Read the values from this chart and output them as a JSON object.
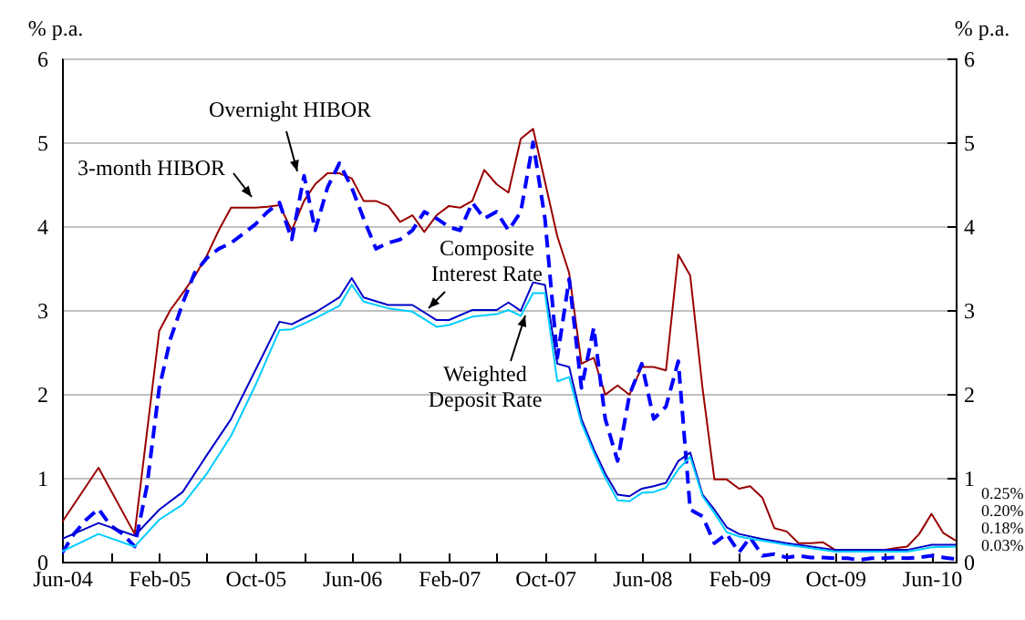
{
  "chart_data": {
    "type": "line",
    "ylabel": "% p.a.",
    "y2label": "% p.a.",
    "xlim": [
      "2004-06",
      "2010-08"
    ],
    "xticks": [
      {
        "value": "2004-06",
        "label": "Jun-04"
      },
      {
        "value": "2004-10",
        "label": null
      },
      {
        "value": "2005-02",
        "label": "Feb-05"
      },
      {
        "value": "2005-06",
        "label": null
      },
      {
        "value": "2005-10",
        "label": "Oct-05"
      },
      {
        "value": "2006-02",
        "label": null
      },
      {
        "value": "2006-06",
        "label": "Jun-06"
      },
      {
        "value": "2006-10",
        "label": null
      },
      {
        "value": "2007-02",
        "label": "Feb-07"
      },
      {
        "value": "2007-06",
        "label": null
      },
      {
        "value": "2007-10",
        "label": "Oct-07"
      },
      {
        "value": "2008-02",
        "label": null
      },
      {
        "value": "2008-06",
        "label": "Jun-08"
      },
      {
        "value": "2008-10",
        "label": null
      },
      {
        "value": "2009-02",
        "label": "Feb-09"
      },
      {
        "value": "2009-06",
        "label": null
      },
      {
        "value": "2009-10",
        "label": "Oct-09"
      },
      {
        "value": "2010-02",
        "label": null
      },
      {
        "value": "2010-06",
        "label": "Jun-10"
      }
    ],
    "ylim": [
      0,
      6
    ],
    "yticks": [
      0,
      1,
      2,
      3,
      4,
      5,
      6
    ],
    "y2lim": [
      0,
      6
    ],
    "y2ticks": [
      0,
      1,
      2,
      3,
      4,
      5,
      6
    ],
    "grid": "y",
    "series": [
      {
        "name": "3-month HIBOR",
        "color": "#990000",
        "x": [
          "2004-06",
          "2004-09",
          "2004-12",
          "2005-02",
          "2005-03",
          "2005-04",
          "2005-05",
          "2005-06",
          "2005-07",
          "2005-08",
          "2005-09",
          "2005-10",
          "2005-11",
          "2005-12",
          "2006-01",
          "2006-02",
          "2006-03",
          "2006-04",
          "2006-05",
          "2006-06",
          "2006-07",
          "2006-08",
          "2006-09",
          "2006-10",
          "2006-11",
          "2006-12",
          "2007-01",
          "2007-02",
          "2007-03",
          "2007-04",
          "2007-05",
          "2007-06",
          "2007-07",
          "2007-08",
          "2007-09",
          "2007-10",
          "2007-11",
          "2007-12",
          "2008-01",
          "2008-02",
          "2008-03",
          "2008-04",
          "2008-05",
          "2008-06",
          "2008-07",
          "2008-08",
          "2008-09",
          "2008-10",
          "2008-11",
          "2008-12",
          "2009-01",
          "2009-02",
          "2009-03",
          "2009-04",
          "2009-05",
          "2009-06",
          "2009-07",
          "2009-08",
          "2009-09",
          "2009-10",
          "2009-11",
          "2009-12",
          "2010-01",
          "2010-02",
          "2010-03",
          "2010-04",
          "2010-05",
          "2010-06",
          "2010-07",
          "2010-08"
        ],
        "values": [
          0.47,
          1.12,
          0.33,
          2.75,
          3.0,
          3.2,
          3.4,
          3.65,
          3.95,
          4.22,
          4.22,
          4.22,
          4.23,
          4.25,
          3.95,
          4.3,
          4.5,
          4.63,
          4.63,
          4.57,
          4.3,
          4.3,
          4.24,
          4.05,
          4.13,
          3.93,
          4.13,
          4.24,
          4.22,
          4.3,
          4.67,
          4.5,
          4.4,
          5.04,
          5.16,
          4.53,
          3.88,
          3.44,
          2.36,
          2.43,
          1.99,
          2.1,
          1.99,
          2.32,
          2.32,
          2.28,
          3.66,
          3.41,
          2.07,
          0.98,
          0.98,
          0.87,
          0.9,
          0.76,
          0.4,
          0.36,
          0.22,
          0.22,
          0.23,
          0.14,
          0.13,
          0.12,
          0.13,
          0.14,
          0.16,
          0.18,
          0.33,
          0.57,
          0.34,
          0.25
        ]
      },
      {
        "name": "Overnight HIBOR",
        "color": "#0000ff",
        "line_style": "dashed",
        "x": [
          "2004-06",
          "2004-07",
          "2004-08",
          "2004-09",
          "2004-10",
          "2004-11",
          "2004-12",
          "2005-01",
          "2005-02",
          "2005-03",
          "2005-04",
          "2005-05",
          "2005-06",
          "2005-07",
          "2005-08",
          "2005-09",
          "2005-10",
          "2005-11",
          "2005-12",
          "2006-01",
          "2006-02",
          "2006-03",
          "2006-04",
          "2006-05",
          "2006-06",
          "2006-07",
          "2006-08",
          "2006-09",
          "2006-10",
          "2006-11",
          "2006-12",
          "2007-01",
          "2007-02",
          "2007-03",
          "2007-04",
          "2007-05",
          "2007-06",
          "2007-07",
          "2007-08",
          "2007-09",
          "2007-10",
          "2007-11",
          "2007-12",
          "2008-01",
          "2008-02",
          "2008-03",
          "2008-04",
          "2008-05",
          "2008-06",
          "2008-07",
          "2008-08",
          "2008-09",
          "2008-10",
          "2008-11",
          "2008-12",
          "2009-01",
          "2009-02",
          "2009-03",
          "2009-04",
          "2009-05",
          "2009-06",
          "2009-07",
          "2009-08",
          "2009-09",
          "2009-10",
          "2009-11",
          "2009-12",
          "2010-01",
          "2010-02",
          "2010-03",
          "2010-04",
          "2010-05",
          "2010-06",
          "2010-07",
          "2010-08"
        ],
        "values": [
          0.1,
          0.33,
          0.5,
          0.63,
          0.43,
          0.33,
          0.18,
          0.9,
          2.07,
          2.65,
          3.08,
          3.44,
          3.62,
          3.73,
          3.8,
          3.91,
          4.02,
          4.17,
          4.28,
          3.84,
          4.6,
          3.95,
          4.46,
          4.75,
          4.46,
          4.09,
          3.73,
          3.8,
          3.84,
          3.95,
          4.17,
          4.09,
          3.99,
          3.95,
          4.28,
          4.09,
          4.17,
          3.95,
          4.17,
          5.0,
          4.09,
          2.43,
          3.37,
          2.07,
          2.79,
          1.7,
          1.2,
          1.99,
          2.36,
          1.7,
          1.85,
          2.39,
          0.62,
          0.54,
          0.22,
          0.33,
          0.11,
          0.29,
          0.07,
          0.09,
          0.05,
          0.07,
          0.05,
          0.05,
          0.04,
          0.04,
          0.02,
          0.04,
          0.04,
          0.05,
          0.04,
          0.05,
          0.07,
          0.05,
          0.03
        ]
      },
      {
        "name": "Composite Interest Rate",
        "color": "#0000c8",
        "x": [
          "2004-06",
          "2004-09",
          "2004-12",
          "2005-02",
          "2005-04",
          "2005-06",
          "2005-08",
          "2005-10",
          "2005-12",
          "2006-01",
          "2006-03",
          "2006-05",
          "2006-06",
          "2006-07",
          "2006-09",
          "2006-11",
          "2007-01",
          "2007-02",
          "2007-04",
          "2007-06",
          "2007-07",
          "2007-08",
          "2007-09",
          "2007-10",
          "2007-11",
          "2007-12",
          "2008-01",
          "2008-02",
          "2008-03",
          "2008-04",
          "2008-05",
          "2008-06",
          "2008-07",
          "2008-08",
          "2008-09",
          "2008-10",
          "2008-11",
          "2008-12",
          "2009-01",
          "2009-02",
          "2009-04",
          "2009-06",
          "2009-08",
          "2009-10",
          "2009-12",
          "2010-02",
          "2010-04",
          "2010-06",
          "2010-08"
        ],
        "values": [
          0.27,
          0.46,
          0.31,
          0.62,
          0.83,
          1.27,
          1.7,
          2.28,
          2.86,
          2.83,
          2.97,
          3.15,
          3.38,
          3.15,
          3.06,
          3.06,
          2.88,
          2.88,
          3.0,
          3.0,
          3.09,
          2.99,
          3.33,
          3.3,
          2.36,
          2.32,
          1.7,
          1.34,
          1.05,
          0.8,
          0.78,
          0.87,
          0.9,
          0.94,
          1.2,
          1.3,
          0.8,
          0.62,
          0.41,
          0.33,
          0.27,
          0.22,
          0.18,
          0.14,
          0.14,
          0.14,
          0.14,
          0.2,
          0.2
        ]
      },
      {
        "name": "Weighted Deposit Rate",
        "color": "#00ccff",
        "x": [
          "2004-06",
          "2004-09",
          "2004-12",
          "2005-02",
          "2005-04",
          "2005-06",
          "2005-08",
          "2005-10",
          "2005-12",
          "2006-01",
          "2006-03",
          "2006-05",
          "2006-06",
          "2006-07",
          "2006-09",
          "2006-11",
          "2007-01",
          "2007-02",
          "2007-04",
          "2007-06",
          "2007-07",
          "2007-08",
          "2007-09",
          "2007-10",
          "2007-11",
          "2007-12",
          "2008-01",
          "2008-02",
          "2008-03",
          "2008-04",
          "2008-05",
          "2008-06",
          "2008-07",
          "2008-08",
          "2008-09",
          "2008-10",
          "2008-11",
          "2008-12",
          "2009-01",
          "2009-02",
          "2009-04",
          "2009-06",
          "2009-08",
          "2009-10",
          "2009-12",
          "2010-02",
          "2010-04",
          "2010-06",
          "2010-08"
        ],
        "values": [
          0.12,
          0.33,
          0.18,
          0.5,
          0.68,
          1.05,
          1.5,
          2.1,
          2.76,
          2.77,
          2.9,
          3.05,
          3.3,
          3.1,
          3.02,
          2.98,
          2.8,
          2.82,
          2.92,
          2.95,
          3.0,
          2.93,
          3.2,
          3.2,
          2.15,
          2.2,
          1.65,
          1.3,
          1.0,
          0.73,
          0.72,
          0.82,
          0.83,
          0.88,
          1.1,
          1.25,
          0.78,
          0.58,
          0.35,
          0.3,
          0.25,
          0.2,
          0.16,
          0.12,
          0.12,
          0.12,
          0.12,
          0.17,
          0.18
        ]
      }
    ],
    "annotations": [
      "0.25%",
      "0.20%",
      "0.18%",
      "0.03%"
    ]
  }
}
